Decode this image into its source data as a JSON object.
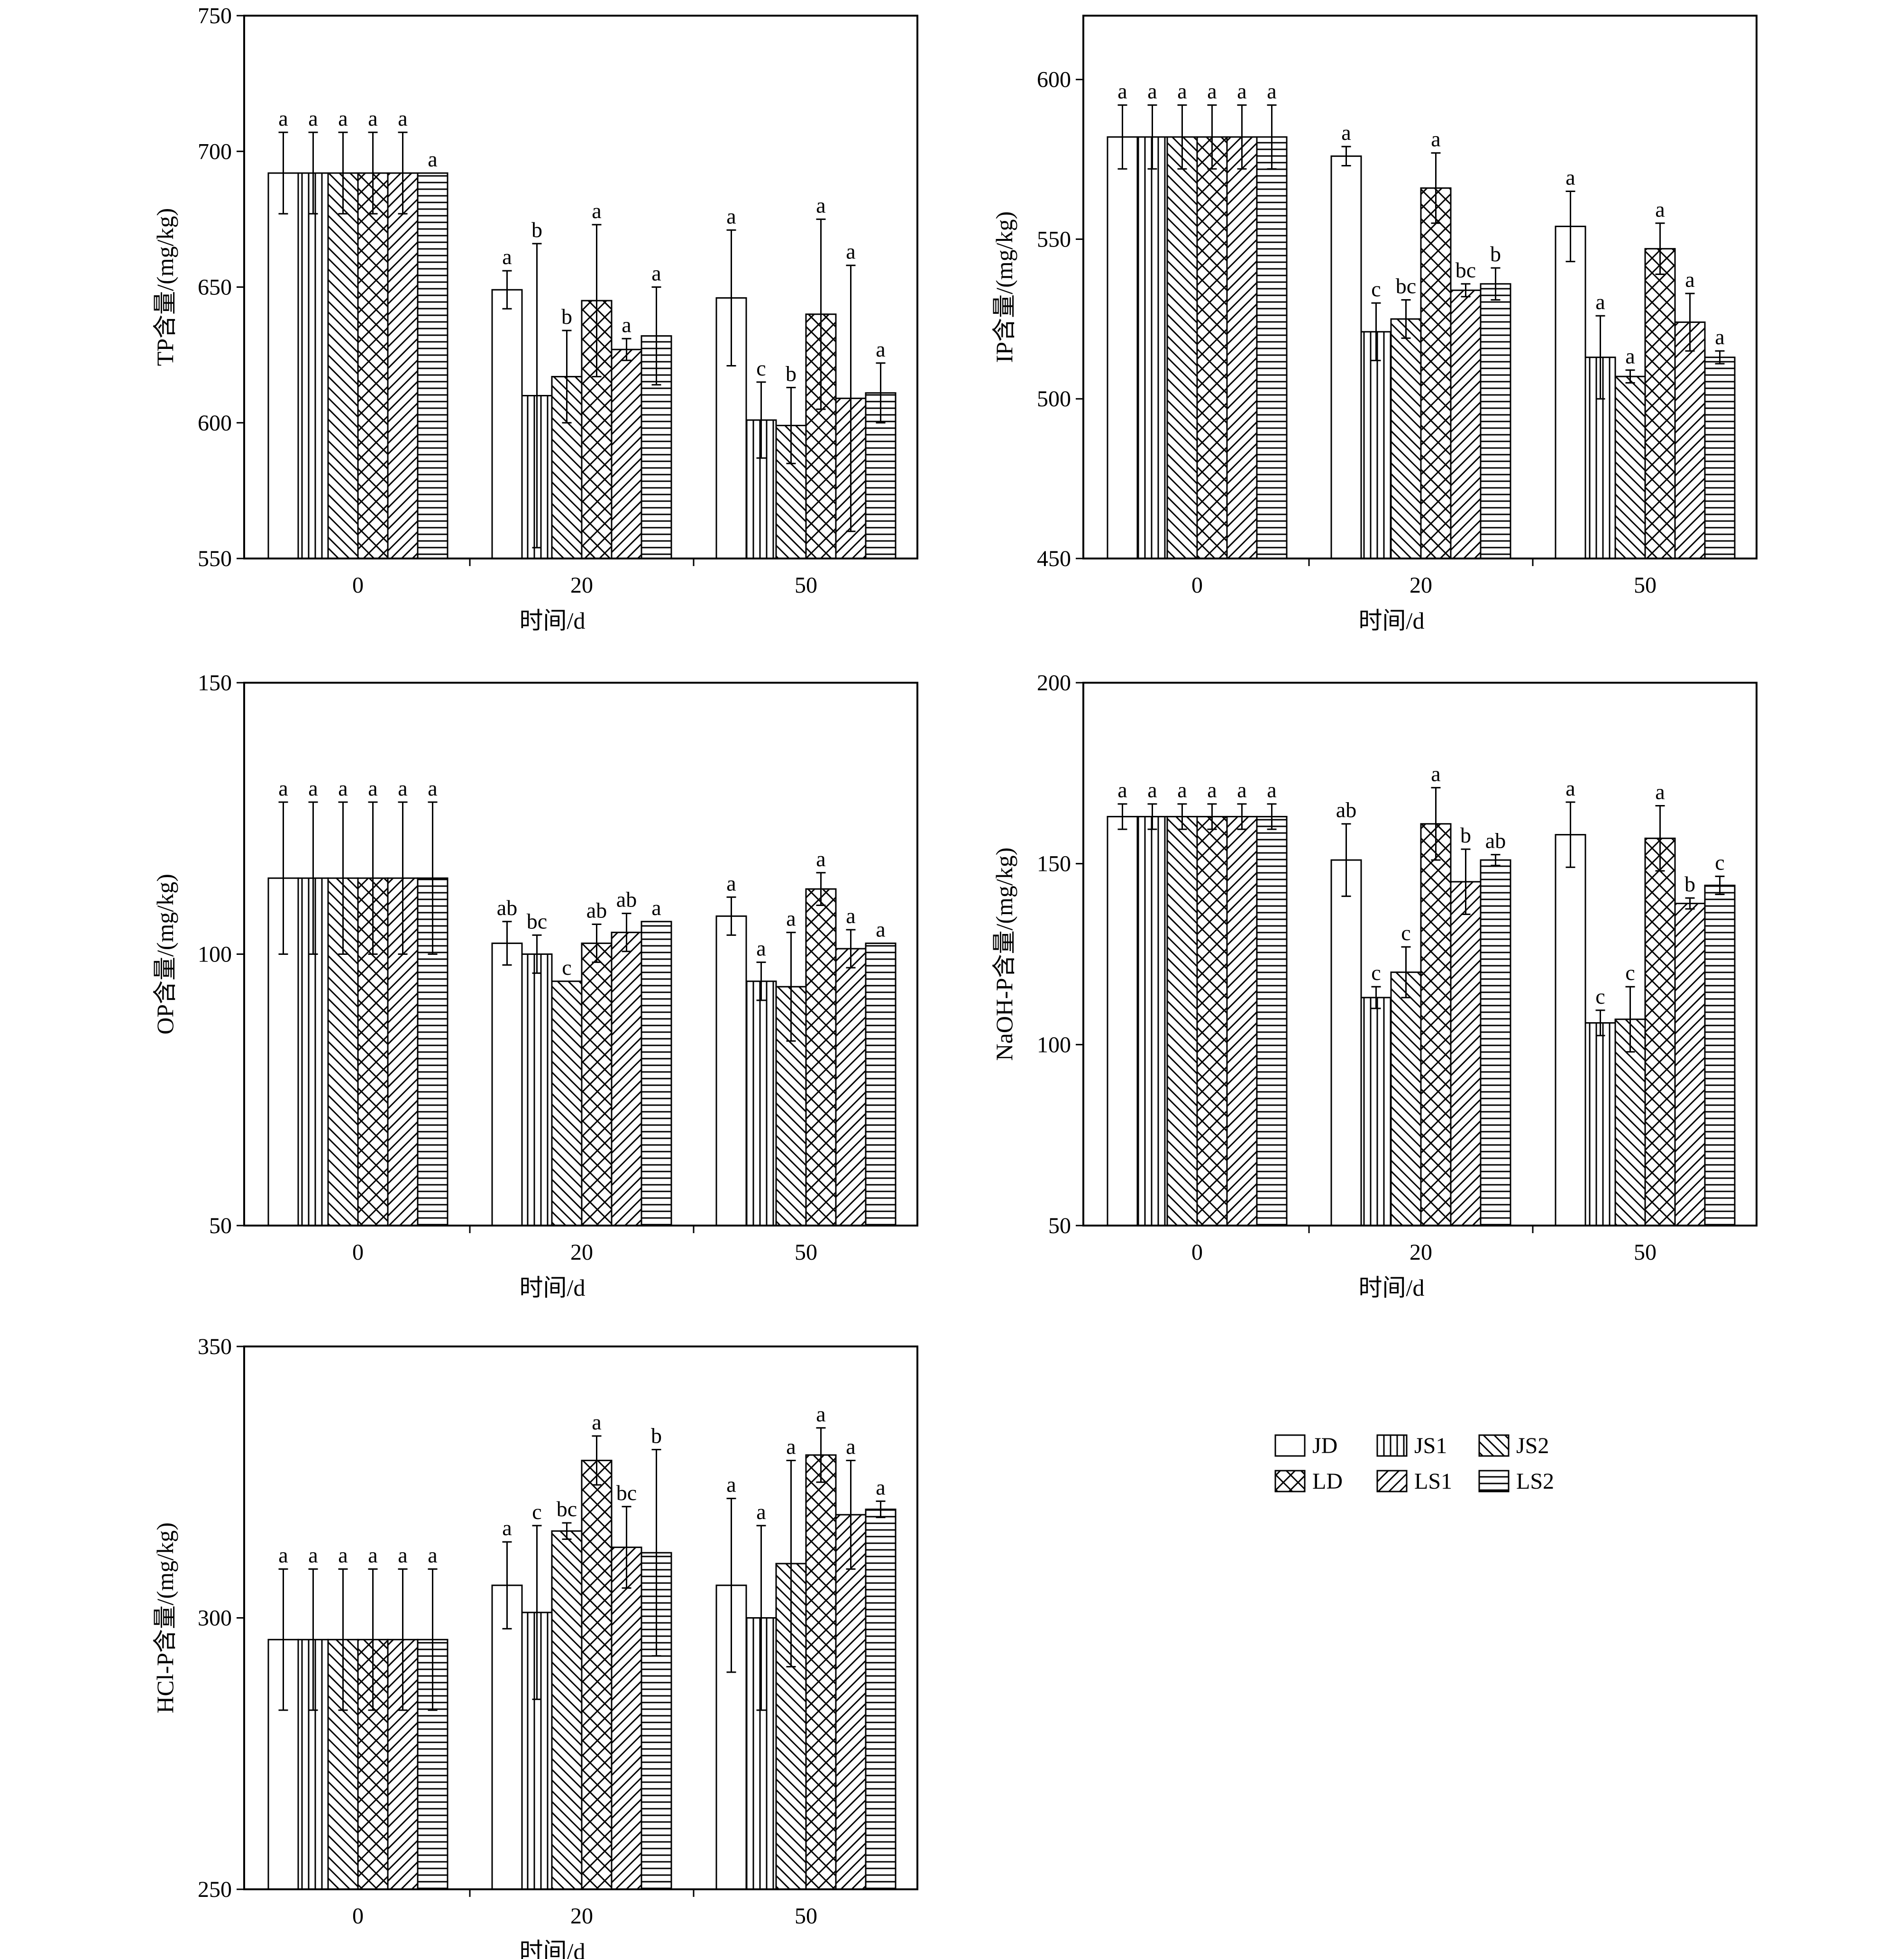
{
  "legend": [
    {
      "name": "JD",
      "pattern": "blank"
    },
    {
      "name": "JS1",
      "pattern": "vertical"
    },
    {
      "name": "JS2",
      "pattern": "back-diagonal"
    },
    {
      "name": "LD",
      "pattern": "crosshatch"
    },
    {
      "name": "LS1",
      "pattern": "forward-diagonal"
    },
    {
      "name": "LS2",
      "pattern": "horizontal"
    }
  ],
  "chart_data": [
    {
      "type": "bar",
      "ylabel": "TP含量/(mg/kg)",
      "xlabel": "时间/d",
      "categories": [
        "0",
        "20",
        "50"
      ],
      "ylim": [
        550,
        750
      ],
      "yticks": [
        550,
        600,
        650,
        700,
        750
      ],
      "series": [
        {
          "name": "JD",
          "values": [
            692,
            649,
            646
          ],
          "errors": [
            15,
            7,
            25
          ],
          "labels": [
            "a",
            "a",
            "a"
          ]
        },
        {
          "name": "JS1",
          "values": [
            692,
            610,
            601
          ],
          "errors": [
            15,
            56,
            14
          ],
          "labels": [
            "a",
            "b",
            "c"
          ]
        },
        {
          "name": "JS2",
          "values": [
            692,
            617,
            599
          ],
          "errors": [
            15,
            17,
            14
          ],
          "labels": [
            "a",
            "b",
            "b"
          ]
        },
        {
          "name": "LD",
          "values": [
            692,
            645,
            640
          ],
          "errors": [
            15,
            28,
            35
          ],
          "labels": [
            "a",
            "a",
            "a"
          ]
        },
        {
          "name": "LS1",
          "values": [
            692,
            627,
            609
          ],
          "errors": [
            15,
            4,
            49
          ],
          "labels": [
            "a",
            "a",
            "a"
          ]
        },
        {
          "name": "LS2",
          "values": [
            692,
            632,
            611
          ],
          "errors": [
            0,
            18,
            11
          ],
          "labels": [
            "a",
            "a",
            "a"
          ]
        }
      ]
    },
    {
      "type": "bar",
      "ylabel": "IP含量/(mg/kg)",
      "xlabel": "时间/d",
      "categories": [
        "0",
        "20",
        "50"
      ],
      "ylim": [
        450,
        620
      ],
      "yticks": [
        450,
        500,
        550,
        600
      ],
      "series": [
        {
          "name": "JD",
          "values": [
            582,
            576,
            554
          ],
          "errors": [
            10,
            3,
            11
          ],
          "labels": [
            "a",
            "a",
            "a"
          ]
        },
        {
          "name": "JS1",
          "values": [
            582,
            521,
            513
          ],
          "errors": [
            10,
            9,
            13
          ],
          "labels": [
            "a",
            "c",
            "a"
          ]
        },
        {
          "name": "JS2",
          "values": [
            582,
            525,
            507
          ],
          "errors": [
            10,
            6,
            2
          ],
          "labels": [
            "a",
            "bc",
            "a"
          ]
        },
        {
          "name": "LD",
          "values": [
            582,
            566,
            547
          ],
          "errors": [
            10,
            11,
            8
          ],
          "labels": [
            "a",
            "a",
            "a"
          ]
        },
        {
          "name": "LS1",
          "values": [
            582,
            534,
            524
          ],
          "errors": [
            10,
            2,
            9
          ],
          "labels": [
            "a",
            "bc",
            "a"
          ]
        },
        {
          "name": "LS2",
          "values": [
            582,
            536,
            513
          ],
          "errors": [
            10,
            5,
            2
          ],
          "labels": [
            "a",
            "b",
            "a"
          ]
        }
      ]
    },
    {
      "type": "bar",
      "ylabel": "OP含量/(mg/kg)",
      "xlabel": "时间/d",
      "categories": [
        "0",
        "20",
        "50"
      ],
      "ylim": [
        50,
        150
      ],
      "yticks": [
        50,
        100,
        150
      ],
      "series": [
        {
          "name": "JD",
          "values": [
            114,
            102,
            107
          ],
          "errors": [
            14,
            4,
            3.5
          ],
          "labels": [
            "a",
            "ab",
            "a"
          ]
        },
        {
          "name": "JS1",
          "values": [
            114,
            100,
            95
          ],
          "errors": [
            14,
            3.5,
            3.5
          ],
          "labels": [
            "a",
            "bc",
            "a"
          ]
        },
        {
          "name": "JS2",
          "values": [
            114,
            95,
            94
          ],
          "errors": [
            14,
            0,
            10
          ],
          "labels": [
            "a",
            "c",
            "a"
          ]
        },
        {
          "name": "LD",
          "values": [
            114,
            102,
            112
          ],
          "errors": [
            14,
            3.5,
            3
          ],
          "labels": [
            "a",
            "ab",
            "a"
          ]
        },
        {
          "name": "LS1",
          "values": [
            114,
            104,
            101
          ],
          "errors": [
            14,
            3.5,
            3.5
          ],
          "labels": [
            "a",
            "ab",
            "a"
          ]
        },
        {
          "name": "LS2",
          "values": [
            114,
            106,
            102
          ],
          "errors": [
            14,
            0,
            0
          ],
          "labels": [
            "a",
            "a",
            "a"
          ]
        }
      ]
    },
    {
      "type": "bar",
      "ylabel": "NaOH-P含量/(mg/kg)",
      "xlabel": "时间/d",
      "categories": [
        "0",
        "20",
        "50"
      ],
      "ylim": [
        50,
        200
      ],
      "yticks": [
        50,
        100,
        150,
        200
      ],
      "series": [
        {
          "name": "JD",
          "values": [
            163,
            151,
            158
          ],
          "errors": [
            3.5,
            10,
            9
          ],
          "labels": [
            "a",
            "ab",
            "a"
          ]
        },
        {
          "name": "JS1",
          "values": [
            163,
            113,
            106
          ],
          "errors": [
            3.5,
            3,
            3.5
          ],
          "labels": [
            "a",
            "c",
            "c"
          ]
        },
        {
          "name": "JS2",
          "values": [
            163,
            120,
            107
          ],
          "errors": [
            3.5,
            7,
            9
          ],
          "labels": [
            "a",
            "c",
            "c"
          ]
        },
        {
          "name": "LD",
          "values": [
            163,
            161,
            157
          ],
          "errors": [
            3.5,
            10,
            9
          ],
          "labels": [
            "a",
            "a",
            "a"
          ]
        },
        {
          "name": "LS1",
          "values": [
            163,
            145,
            139
          ],
          "errors": [
            3.5,
            9,
            1.5
          ],
          "labels": [
            "a",
            "b",
            "b"
          ]
        },
        {
          "name": "LS2",
          "values": [
            163,
            151,
            144
          ],
          "errors": [
            3.5,
            1.5,
            2.5
          ],
          "labels": [
            "a",
            "ab",
            "c"
          ]
        }
      ]
    },
    {
      "type": "bar",
      "ylabel": "HCl-P含量/(mg/kg)",
      "xlabel": "时间/d",
      "categories": [
        "0",
        "20",
        "50"
      ],
      "ylim": [
        250,
        350
      ],
      "yticks": [
        250,
        300,
        350
      ],
      "series": [
        {
          "name": "JD",
          "values": [
            296,
            306,
            306
          ],
          "errors": [
            13,
            8,
            16
          ],
          "labels": [
            "a",
            "a",
            "a"
          ]
        },
        {
          "name": "JS1",
          "values": [
            296,
            301,
            300
          ],
          "errors": [
            13,
            16,
            17
          ],
          "labels": [
            "a",
            "c",
            "a"
          ]
        },
        {
          "name": "JS2",
          "values": [
            296,
            316,
            310
          ],
          "errors": [
            13,
            1.5,
            19
          ],
          "labels": [
            "a",
            "bc",
            "a"
          ]
        },
        {
          "name": "LD",
          "values": [
            296,
            329,
            330
          ],
          "errors": [
            13,
            4.5,
            5
          ],
          "labels": [
            "a",
            "a",
            "a"
          ]
        },
        {
          "name": "LS1",
          "values": [
            296,
            313,
            319
          ],
          "errors": [
            13,
            7.5,
            10
          ],
          "labels": [
            "a",
            "bc",
            "a"
          ]
        },
        {
          "name": "LS2",
          "values": [
            296,
            312,
            320
          ],
          "errors": [
            13,
            19,
            1.5
          ],
          "labels": [
            "a",
            "b",
            "a"
          ]
        }
      ]
    }
  ]
}
